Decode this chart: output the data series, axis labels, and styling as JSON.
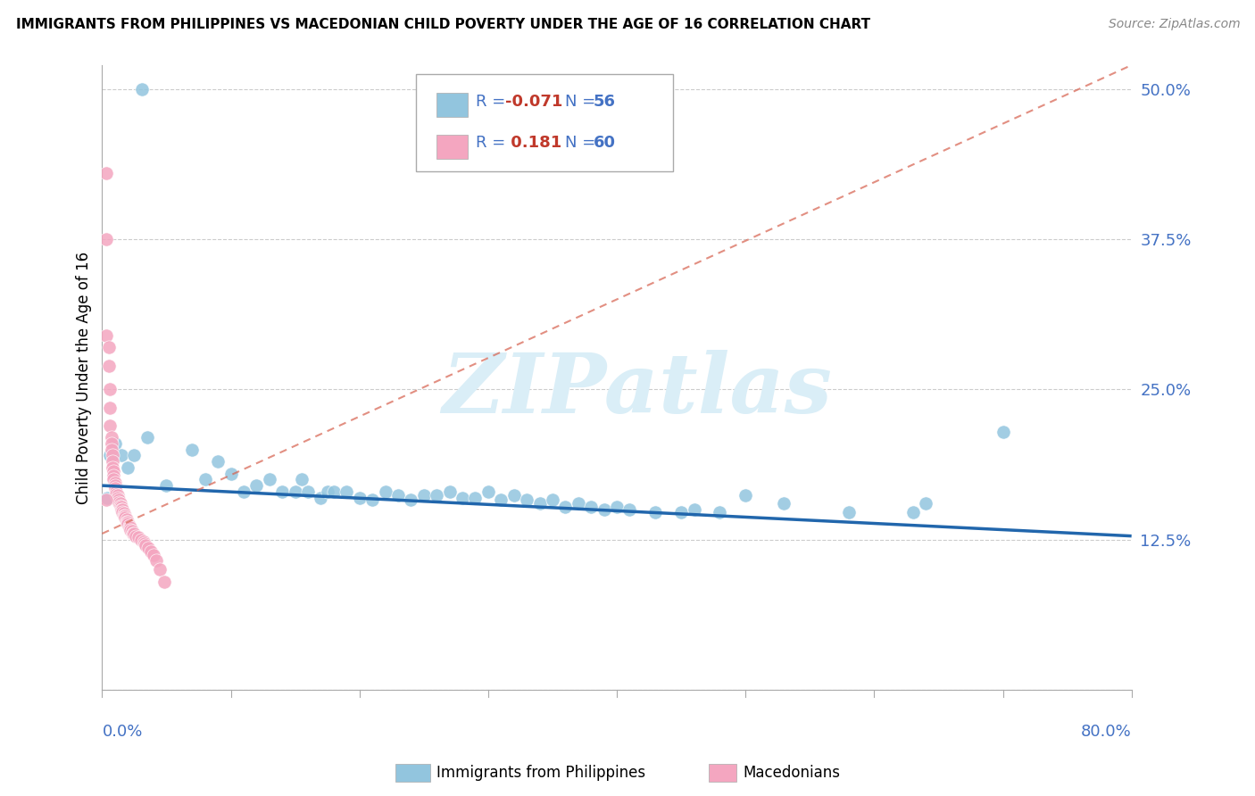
{
  "title": "IMMIGRANTS FROM PHILIPPINES VS MACEDONIAN CHILD POVERTY UNDER THE AGE OF 16 CORRELATION CHART",
  "source": "Source: ZipAtlas.com",
  "ylabel": "Child Poverty Under the Age of 16",
  "yticks": [
    0.0,
    0.125,
    0.25,
    0.375,
    0.5
  ],
  "ytick_labels": [
    "",
    "12.5%",
    "25.0%",
    "37.5%",
    "50.0%"
  ],
  "xlim": [
    0.0,
    0.8
  ],
  "ylim": [
    0.0,
    0.52
  ],
  "legend_label1": "Immigrants from Philippines",
  "legend_label2": "Macedonians",
  "blue_color": "#92c5de",
  "pink_color": "#f4a6c0",
  "trendline_blue_color": "#2166ac",
  "trendline_pink_color": "#d6604d",
  "watermark_color": "#daeef7",
  "blue_dots": [
    [
      0.031,
      0.5
    ],
    [
      0.004,
      0.16
    ],
    [
      0.006,
      0.195
    ],
    [
      0.01,
      0.205
    ],
    [
      0.015,
      0.195
    ],
    [
      0.02,
      0.185
    ],
    [
      0.025,
      0.195
    ],
    [
      0.035,
      0.21
    ],
    [
      0.05,
      0.17
    ],
    [
      0.07,
      0.2
    ],
    [
      0.08,
      0.175
    ],
    [
      0.09,
      0.19
    ],
    [
      0.1,
      0.18
    ],
    [
      0.11,
      0.165
    ],
    [
      0.12,
      0.17
    ],
    [
      0.13,
      0.175
    ],
    [
      0.14,
      0.165
    ],
    [
      0.15,
      0.165
    ],
    [
      0.155,
      0.175
    ],
    [
      0.16,
      0.165
    ],
    [
      0.17,
      0.16
    ],
    [
      0.175,
      0.165
    ],
    [
      0.18,
      0.165
    ],
    [
      0.19,
      0.165
    ],
    [
      0.2,
      0.16
    ],
    [
      0.21,
      0.158
    ],
    [
      0.22,
      0.165
    ],
    [
      0.23,
      0.162
    ],
    [
      0.24,
      0.158
    ],
    [
      0.25,
      0.162
    ],
    [
      0.26,
      0.162
    ],
    [
      0.27,
      0.165
    ],
    [
      0.28,
      0.16
    ],
    [
      0.29,
      0.16
    ],
    [
      0.3,
      0.165
    ],
    [
      0.31,
      0.158
    ],
    [
      0.32,
      0.162
    ],
    [
      0.33,
      0.158
    ],
    [
      0.34,
      0.155
    ],
    [
      0.35,
      0.158
    ],
    [
      0.36,
      0.152
    ],
    [
      0.37,
      0.155
    ],
    [
      0.38,
      0.152
    ],
    [
      0.39,
      0.15
    ],
    [
      0.4,
      0.152
    ],
    [
      0.41,
      0.15
    ],
    [
      0.43,
      0.148
    ],
    [
      0.45,
      0.148
    ],
    [
      0.46,
      0.15
    ],
    [
      0.48,
      0.148
    ],
    [
      0.5,
      0.162
    ],
    [
      0.53,
      0.155
    ],
    [
      0.58,
      0.148
    ],
    [
      0.63,
      0.148
    ],
    [
      0.64,
      0.155
    ],
    [
      0.7,
      0.215
    ]
  ],
  "pink_dots": [
    [
      0.003,
      0.43
    ],
    [
      0.003,
      0.375
    ],
    [
      0.003,
      0.295
    ],
    [
      0.005,
      0.285
    ],
    [
      0.005,
      0.27
    ],
    [
      0.006,
      0.25
    ],
    [
      0.006,
      0.235
    ],
    [
      0.006,
      0.22
    ],
    [
      0.007,
      0.21
    ],
    [
      0.007,
      0.205
    ],
    [
      0.007,
      0.2
    ],
    [
      0.008,
      0.195
    ],
    [
      0.008,
      0.19
    ],
    [
      0.008,
      0.185
    ],
    [
      0.009,
      0.182
    ],
    [
      0.009,
      0.178
    ],
    [
      0.009,
      0.175
    ],
    [
      0.01,
      0.172
    ],
    [
      0.01,
      0.17
    ],
    [
      0.01,
      0.168
    ],
    [
      0.011,
      0.165
    ],
    [
      0.011,
      0.163
    ],
    [
      0.012,
      0.162
    ],
    [
      0.012,
      0.16
    ],
    [
      0.013,
      0.158
    ],
    [
      0.013,
      0.156
    ],
    [
      0.014,
      0.155
    ],
    [
      0.014,
      0.153
    ],
    [
      0.015,
      0.152
    ],
    [
      0.015,
      0.15
    ],
    [
      0.016,
      0.15
    ],
    [
      0.016,
      0.148
    ],
    [
      0.017,
      0.147
    ],
    [
      0.017,
      0.145
    ],
    [
      0.018,
      0.145
    ],
    [
      0.018,
      0.143
    ],
    [
      0.019,
      0.142
    ],
    [
      0.019,
      0.14
    ],
    [
      0.02,
      0.14
    ],
    [
      0.02,
      0.138
    ],
    [
      0.021,
      0.137
    ],
    [
      0.021,
      0.135
    ],
    [
      0.022,
      0.135
    ],
    [
      0.022,
      0.133
    ],
    [
      0.023,
      0.132
    ],
    [
      0.024,
      0.13
    ],
    [
      0.025,
      0.13
    ],
    [
      0.026,
      0.128
    ],
    [
      0.028,
      0.127
    ],
    [
      0.03,
      0.125
    ],
    [
      0.032,
      0.123
    ],
    [
      0.033,
      0.122
    ],
    [
      0.034,
      0.12
    ],
    [
      0.036,
      0.118
    ],
    [
      0.038,
      0.115
    ],
    [
      0.04,
      0.112
    ],
    [
      0.042,
      0.108
    ],
    [
      0.045,
      0.1
    ],
    [
      0.048,
      0.09
    ],
    [
      0.003,
      0.158
    ]
  ],
  "blue_trend_x": [
    0.0,
    0.8
  ],
  "blue_trend_y": [
    0.17,
    0.128
  ],
  "pink_trend_x": [
    0.0,
    0.8
  ],
  "pink_trend_y": [
    0.13,
    0.52
  ]
}
